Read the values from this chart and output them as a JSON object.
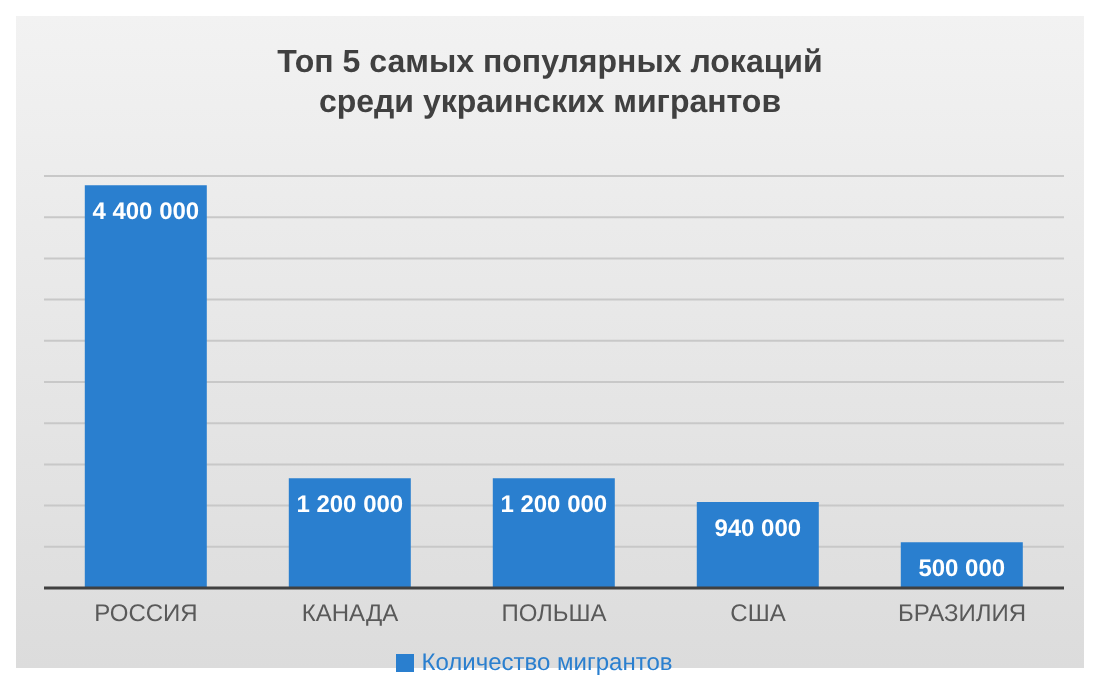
{
  "chart_data": {
    "type": "bar",
    "title": "Топ 5 самых популярных  локаций среди украинских мигрантов",
    "categories": [
      "РОССИЯ",
      "КАНАДА",
      "ПОЛЬША",
      "США",
      "БРАЗИЛИЯ"
    ],
    "series": [
      {
        "name": "Количество мигрантов",
        "color": "#2a7fcf",
        "values": [
          4400000,
          1200000,
          1200000,
          940000,
          500000
        ],
        "value_labels": [
          "4 400 000",
          "1 200 000",
          "1 200 000",
          "940 000",
          "500 000"
        ]
      }
    ],
    "tick_labels": "x",
    "grid": "y",
    "legend": "bottom"
  }
}
